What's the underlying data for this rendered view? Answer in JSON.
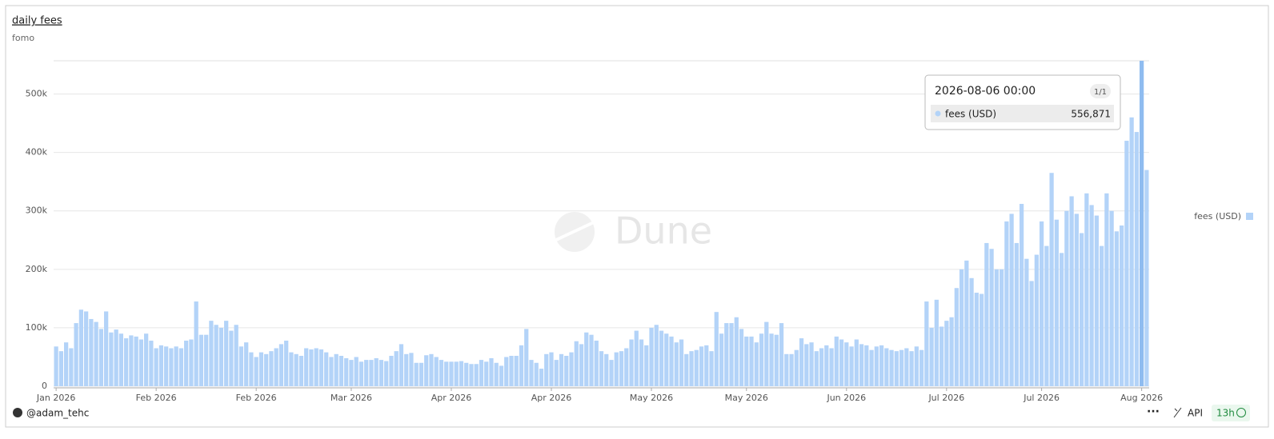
{
  "chart_data": {
    "type": "bar",
    "title": "daily fees",
    "subtitle": "fomo",
    "watermark": "Dune",
    "series": [
      {
        "name": "fees (USD)",
        "color": "#b3d3f8",
        "values": [
          68000,
          60000,
          75000,
          65000,
          108000,
          131000,
          128000,
          115000,
          110000,
          98000,
          128000,
          92000,
          97000,
          90000,
          82000,
          87000,
          85000,
          80000,
          90000,
          78000,
          65000,
          70000,
          68000,
          65000,
          68000,
          65000,
          78000,
          80000,
          145000,
          88000,
          88000,
          112000,
          105000,
          100000,
          112000,
          95000,
          105000,
          68000,
          75000,
          58000,
          50000,
          58000,
          55000,
          60000,
          65000,
          72000,
          78000,
          58000,
          55000,
          52000,
          65000,
          63000,
          65000,
          63000,
          58000,
          50000,
          55000,
          52000,
          48000,
          45000,
          50000,
          42000,
          45000,
          45000,
          48000,
          45000,
          43000,
          52000,
          60000,
          72000,
          55000,
          57000,
          40000,
          40000,
          53000,
          55000,
          50000,
          45000,
          42000,
          42000,
          42000,
          43000,
          40000,
          38000,
          38000,
          45000,
          42000,
          48000,
          40000,
          35000,
          50000,
          52000,
          52000,
          70000,
          98000,
          45000,
          40000,
          30000,
          55000,
          58000,
          45000,
          55000,
          52000,
          58000,
          77000,
          72000,
          92000,
          88000,
          78000,
          60000,
          55000,
          45000,
          58000,
          60000,
          65000,
          80000,
          95000,
          80000,
          70000,
          100000,
          105000,
          95000,
          90000,
          85000,
          75000,
          80000,
          55000,
          60000,
          62000,
          68000,
          70000,
          60000,
          127000,
          90000,
          108000,
          108000,
          118000,
          98000,
          85000,
          85000,
          75000,
          90000,
          110000,
          90000,
          88000,
          108000,
          55000,
          55000,
          62000,
          82000,
          72000,
          75000,
          60000,
          65000,
          70000,
          65000,
          85000,
          80000,
          75000,
          68000,
          80000,
          72000,
          70000,
          62000,
          68000,
          70000,
          65000,
          62000,
          60000,
          62000,
          65000,
          60000,
          68000,
          62000,
          145000,
          100000,
          148000,
          102000,
          112000,
          118000,
          168000,
          200000,
          215000,
          185000,
          160000,
          158000,
          245000,
          235000,
          200000,
          200000,
          282000,
          295000,
          245000,
          312000,
          218000,
          180000,
          225000,
          282000,
          240000,
          365000,
          285000,
          228000,
          300000,
          325000,
          295000,
          262000,
          330000,
          310000,
          292000,
          240000,
          330000,
          300000,
          265000,
          275000,
          420000,
          460000,
          435000,
          556871,
          370000
        ]
      }
    ],
    "categories": [
      "Jan 2026",
      null,
      null,
      null,
      null,
      null,
      null,
      null,
      null,
      null,
      null,
      null,
      null,
      null,
      null,
      null,
      null,
      null,
      null,
      null,
      "Feb 2026",
      null,
      null,
      null,
      null,
      null,
      null,
      null,
      null,
      null,
      null,
      null,
      null,
      null,
      null,
      null,
      null,
      null,
      null,
      null,
      "Feb 2026",
      null,
      null,
      null,
      null,
      null,
      null,
      null,
      null,
      null,
      null,
      null,
      null,
      null,
      null,
      null,
      null,
      null,
      null,
      "Mar 2026",
      null,
      null,
      null,
      null,
      null,
      null,
      null,
      null,
      null,
      null,
      null,
      null,
      null,
      null,
      null,
      null,
      null,
      null,
      null,
      "Apr 2026",
      null,
      null,
      null,
      null,
      null,
      null,
      null,
      null,
      null,
      null,
      null,
      null,
      null,
      null,
      null,
      null,
      null,
      null,
      null,
      "Apr 2026",
      null,
      null,
      null,
      null,
      null,
      null,
      null,
      null,
      null,
      null,
      null,
      null,
      null,
      null,
      null,
      null,
      null,
      null,
      null,
      "May 2026",
      null,
      null,
      null,
      null,
      null,
      null,
      null,
      null,
      null,
      null,
      null,
      null,
      null,
      null,
      null,
      null,
      null,
      null,
      "May 2026",
      null,
      null,
      null,
      null,
      null,
      null,
      null,
      null,
      null,
      null,
      null,
      null,
      null,
      null,
      null,
      null,
      null,
      null,
      null,
      "Jun 2026",
      null,
      null,
      null,
      null,
      null,
      null,
      null,
      null,
      null,
      null,
      null,
      null,
      null,
      null,
      null,
      null,
      null,
      null,
      null,
      "Jul 2026",
      null,
      null,
      null,
      null,
      null,
      null,
      null,
      null,
      null,
      null,
      null,
      null,
      null,
      null,
      null,
      null,
      null,
      null,
      "Jul 2026",
      null,
      null,
      null,
      null,
      null,
      null,
      null,
      null,
      null,
      null,
      null,
      null,
      null,
      null,
      null,
      null,
      null,
      null,
      null,
      "Aug 2026",
      null
    ],
    "ylim": [
      0,
      556871
    ],
    "yticks": [
      0,
      {
        "value": 100000,
        "label": "100k"
      },
      {
        "value": 200000,
        "label": "200k"
      },
      {
        "value": 300000,
        "label": "300k"
      },
      {
        "value": 400000,
        "label": "400k"
      },
      {
        "value": 500000,
        "label": "500k"
      }
    ],
    "grid": true,
    "legend": "right",
    "tooltip": {
      "date": "2026-08-06 00:00",
      "count": "1/1",
      "series": "fees (USD)",
      "value": 556871,
      "value_label": "556,871"
    }
  },
  "footer": {
    "user": "@adam_tehc",
    "api": "API",
    "age": "13h"
  }
}
